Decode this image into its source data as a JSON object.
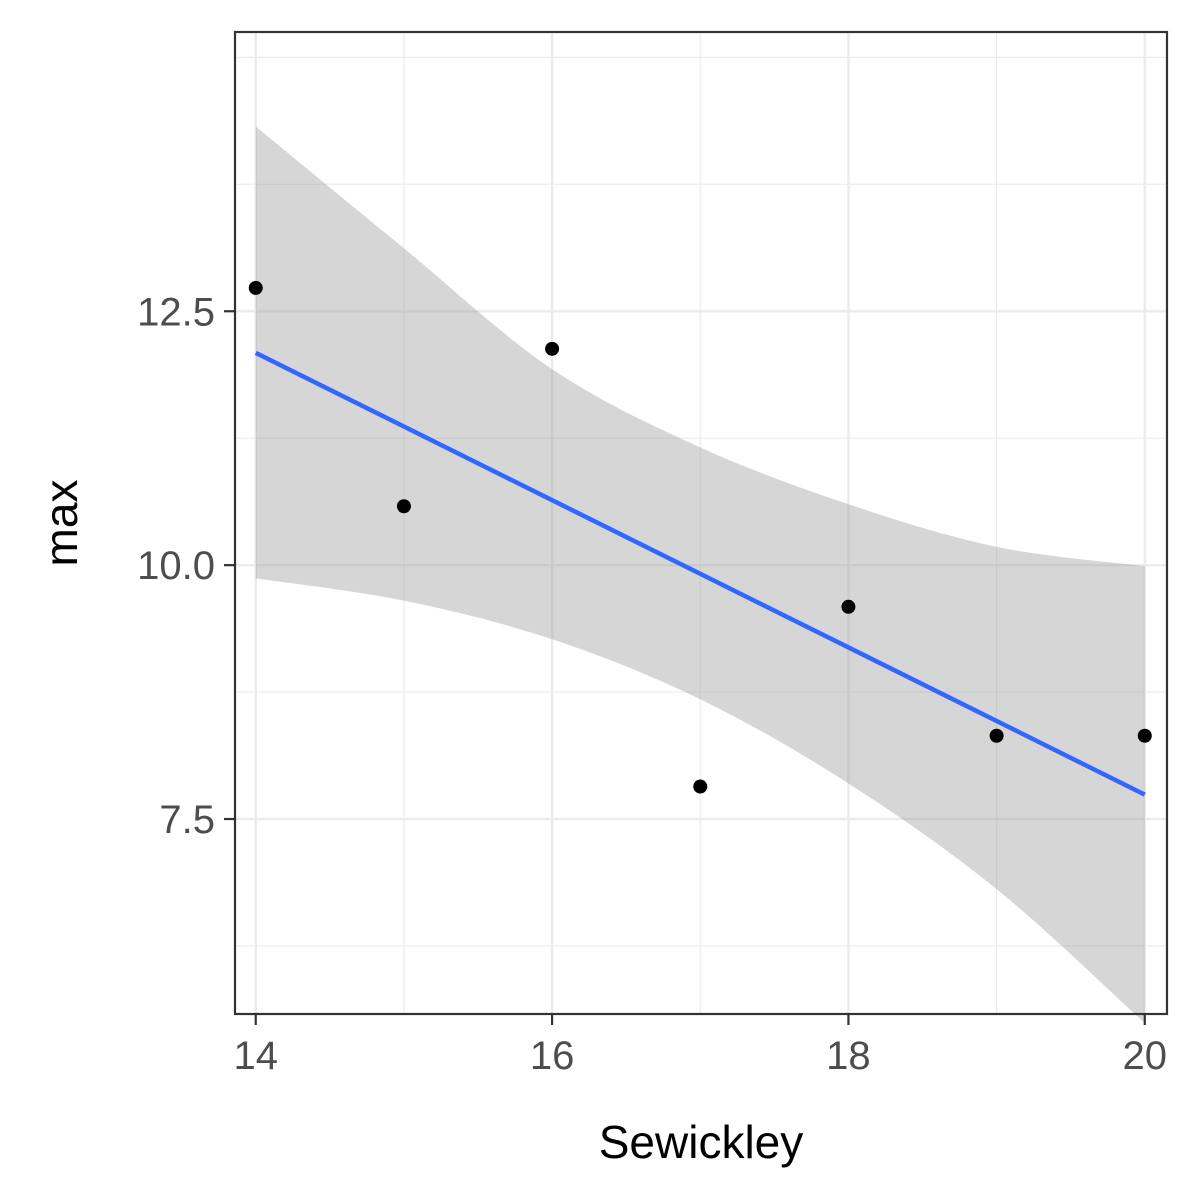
{
  "chart_data": {
    "type": "scatter",
    "xlabel": "Sewickley",
    "ylabel": "max",
    "xlim": [
      13.86,
      20.15
    ],
    "ylim": [
      5.58,
      15.25
    ],
    "x_ticks": [
      14,
      16,
      18,
      20
    ],
    "x_tick_labels": [
      "14",
      "16",
      "18",
      "20"
    ],
    "x_minor_ticks": [
      15,
      17,
      19
    ],
    "y_ticks": [
      7.5,
      10.0,
      12.5
    ],
    "y_tick_labels": [
      "7.5",
      "10.0",
      "12.5"
    ],
    "y_minor_ticks": [
      6.25,
      8.75,
      11.25,
      13.75,
      15.0
    ],
    "grid": true,
    "theme": "bw",
    "points": [
      {
        "x": 14,
        "y": 12.73
      },
      {
        "x": 15,
        "y": 10.58
      },
      {
        "x": 16,
        "y": 12.13
      },
      {
        "x": 17,
        "y": 7.82
      },
      {
        "x": 18,
        "y": 9.59
      },
      {
        "x": 19,
        "y": 8.32
      },
      {
        "x": 20,
        "y": 8.32
      }
    ],
    "fit_line": {
      "method": "lm",
      "x": [
        14,
        20
      ],
      "y": [
        12.09,
        7.74
      ],
      "color": "#3366FF"
    },
    "confidence_band": {
      "color": "#999999",
      "x": [
        14,
        15,
        16,
        17,
        18,
        19,
        20
      ],
      "lower": [
        9.87,
        9.65,
        9.27,
        8.68,
        7.85,
        6.81,
        5.49
      ],
      "upper": [
        14.32,
        13.12,
        11.93,
        11.16,
        10.6,
        10.18,
        9.99
      ]
    },
    "point_color": "#000000"
  }
}
